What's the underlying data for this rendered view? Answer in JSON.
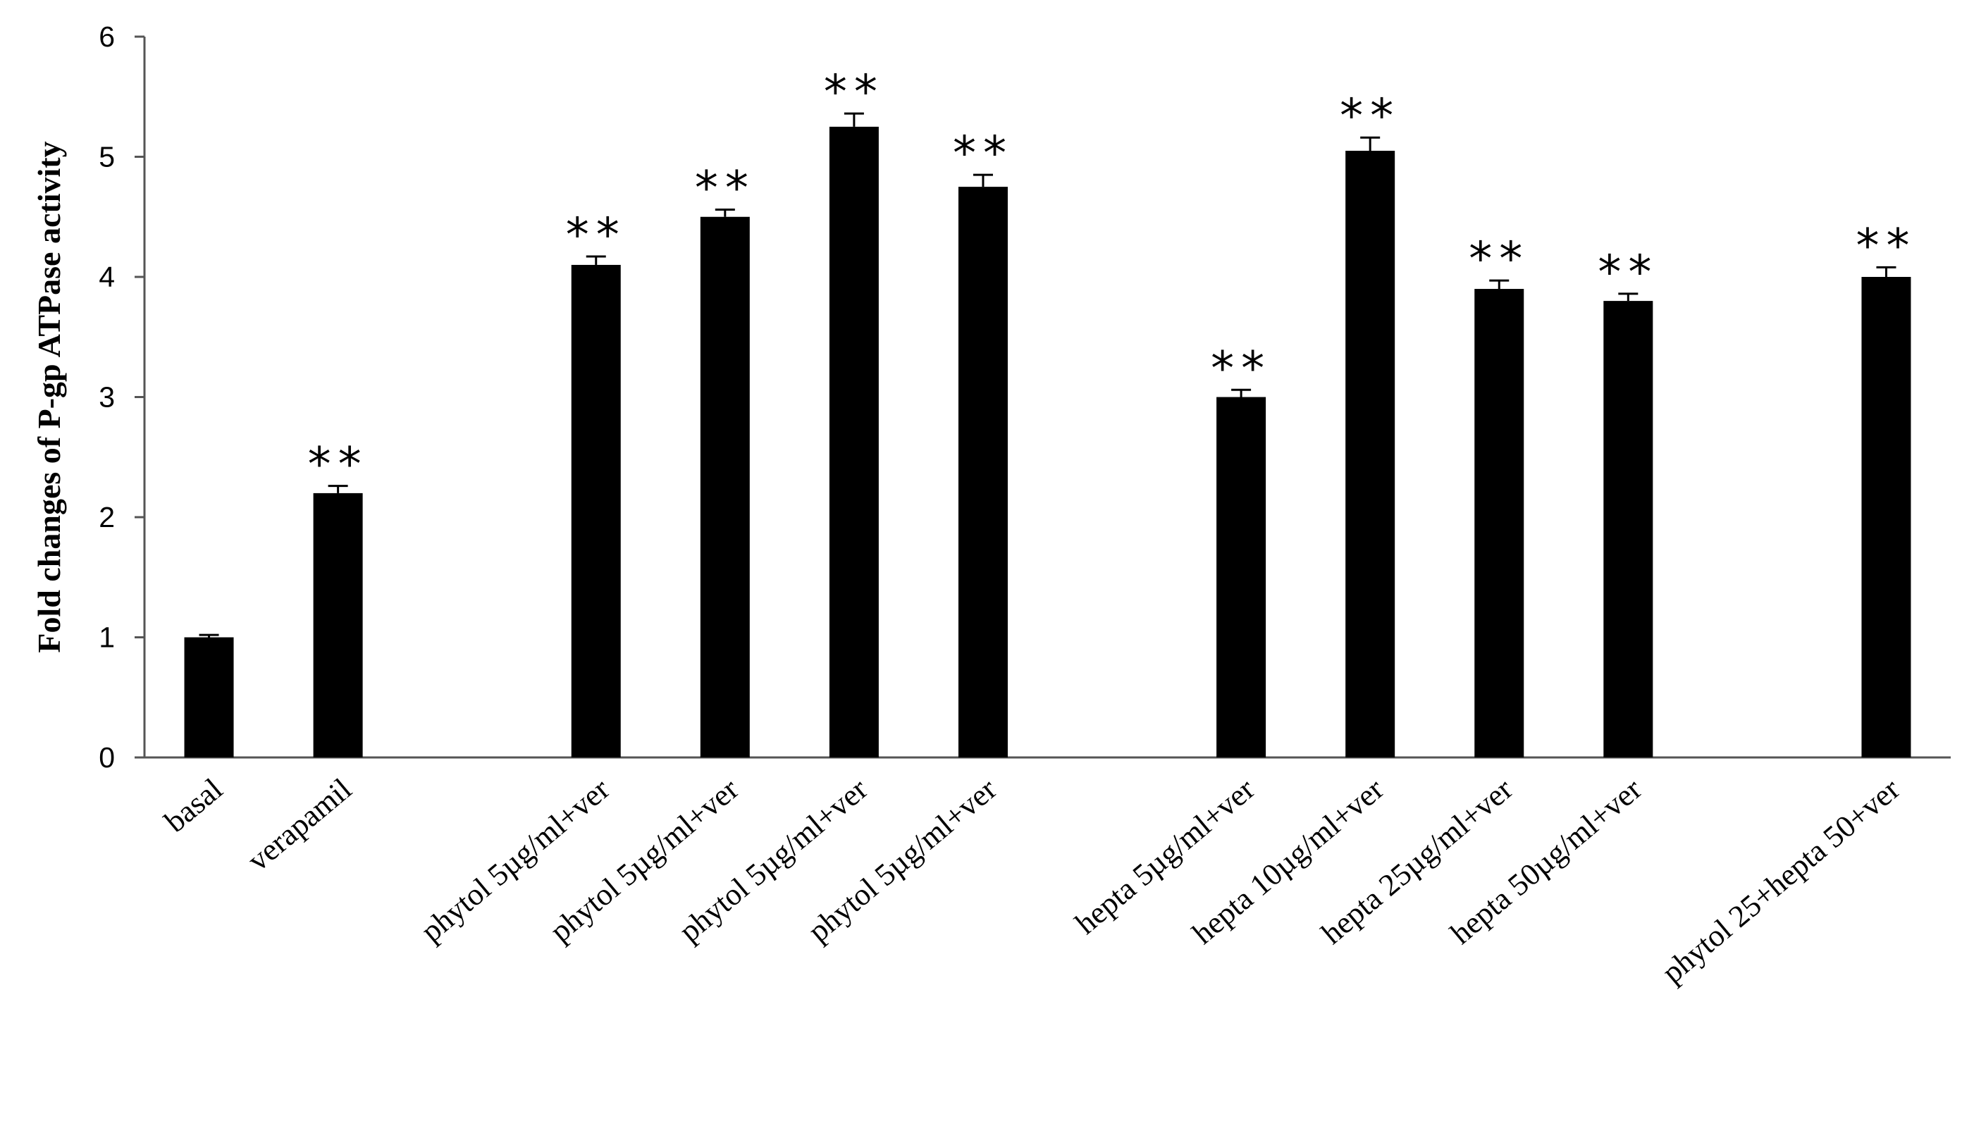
{
  "chart_data": {
    "type": "bar",
    "ylabel": "Fold changes of P-gp ATPase activity",
    "xlabel": "",
    "ylim": [
      0,
      6
    ],
    "yticks": [
      "0",
      "1",
      "2",
      "3",
      "4",
      "5",
      "6"
    ],
    "grid": false,
    "bar_color": "#000000",
    "categories": [
      "basal",
      "verapamil",
      "",
      "phytol 5µg/ml+ver",
      "phytol 5µg/ml+ver",
      "phytol 5µg/ml+ver",
      "phytol 5µg/ml+ver",
      "",
      "hepta 5µg/ml+ver",
      "hepta 10µg/ml+ver",
      "hepta 25µg/ml+ver",
      "hepta 50µg/ml+ver",
      "",
      "phytol 25+hepta 50+ver"
    ],
    "values": [
      1.0,
      2.2,
      null,
      4.1,
      4.5,
      5.25,
      4.75,
      null,
      3.0,
      5.05,
      3.9,
      3.8,
      null,
      4.0
    ],
    "errors": [
      0.02,
      0.06,
      null,
      0.07,
      0.06,
      0.11,
      0.1,
      null,
      0.06,
      0.11,
      0.07,
      0.06,
      null,
      0.08
    ],
    "annotations": [
      "",
      "**",
      "",
      "**",
      "**",
      "**",
      "**",
      "",
      "**",
      "**",
      "**",
      "**",
      "",
      "**"
    ]
  }
}
